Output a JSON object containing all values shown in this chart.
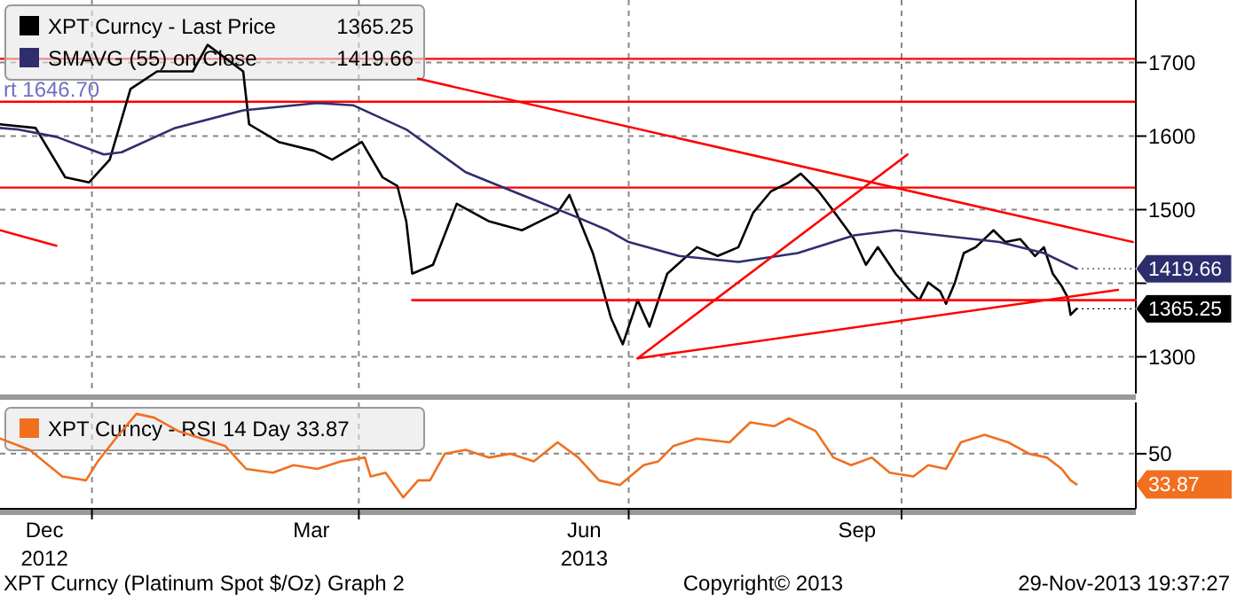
{
  "chart_data": [
    {
      "type": "line",
      "xlim": [
        "2012-12-01",
        "2013-12-19"
      ],
      "ylim": [
        1250,
        1785
      ],
      "yticks": [
        1300,
        {
          "value": 1400,
          "label": null
        },
        1500,
        1600,
        1700
      ],
      "xticks": [
        {
          "value": "2013-01-01",
          "label": null
        },
        {
          "value": "2013-04-01",
          "label": null
        },
        {
          "value": "2013-07-01",
          "label": null
        },
        {
          "value": "2013-10-01",
          "label": null
        }
      ],
      "tick_labels": "y",
      "grid": true,
      "legend": "top left",
      "marker": "none",
      "line_style": "solid",
      "series": [
        {
          "name": "XPT Curncy - Last Price",
          "color": "#000000",
          "x": [
            "2012-12-01",
            "2012-12-13",
            "2012-12-23",
            "2012-12-31",
            "2013-01-07",
            "2013-01-14",
            "2013-01-23",
            "2013-02-04",
            "2013-02-09",
            "2013-02-21",
            "2013-02-23",
            "2013-03-05",
            "2013-03-17",
            "2013-03-23",
            "2013-04-02",
            "2013-04-09",
            "2013-04-14",
            "2013-04-17",
            "2013-04-19",
            "2013-04-26",
            "2013-05-04",
            "2013-05-15",
            "2013-05-26",
            "2013-06-07",
            "2013-06-11",
            "2013-06-19",
            "2013-06-25",
            "2013-06-29",
            "2013-07-04",
            "2013-07-08",
            "2013-07-14",
            "2013-07-24",
            "2013-07-31",
            "2013-08-07",
            "2013-08-12",
            "2013-08-18",
            "2013-08-24",
            "2013-08-28",
            "2013-09-03",
            "2013-09-07",
            "2013-09-15",
            "2013-09-19",
            "2013-09-23",
            "2013-09-29",
            "2013-10-04",
            "2013-10-07",
            "2013-10-10",
            "2013-10-14",
            "2013-10-16",
            "2013-10-19",
            "2013-10-22",
            "2013-10-26",
            "2013-11-01",
            "2013-11-05",
            "2013-11-10",
            "2013-11-15",
            "2013-11-18",
            "2013-11-21",
            "2013-11-24",
            "2013-11-26",
            "2013-11-27",
            "2013-11-29"
          ],
          "values": [
            1616,
            1611,
            1544,
            1537,
            1568,
            1664,
            1688,
            1688,
            1724,
            1688,
            1616,
            1592,
            1580,
            1568,
            1592,
            1544,
            1532,
            1484,
            1413,
            1425,
            1508,
            1484,
            1472,
            1496,
            1520,
            1440,
            1353,
            1317,
            1377,
            1341,
            1413,
            1449,
            1437,
            1449,
            1496,
            1525,
            1537,
            1549,
            1525,
            1504,
            1460,
            1425,
            1449,
            1413,
            1389,
            1377,
            1401,
            1389,
            1372,
            1401,
            1441,
            1449,
            1472,
            1456,
            1460,
            1437,
            1449,
            1413,
            1396,
            1381,
            1357,
            1365.25
          ],
          "value_labels": [
            null,
            null,
            null,
            null,
            null,
            null,
            null,
            null,
            null,
            null,
            null,
            null,
            null,
            null,
            null,
            null,
            null,
            null,
            null,
            null,
            null,
            null,
            null,
            null,
            null,
            null,
            null,
            null,
            null,
            null,
            null,
            null,
            null,
            null,
            null,
            null,
            null,
            null,
            null,
            null,
            null,
            null,
            null,
            null,
            null,
            null,
            null,
            null,
            null,
            null,
            null,
            null,
            null,
            null,
            null,
            null,
            null,
            null,
            null,
            null,
            null,
            "1365.25"
          ]
        },
        {
          "name": "SMAVG (55) on Close",
          "color": "#2e2e6e",
          "x": [
            "2012-12-01",
            "2012-12-07",
            "2012-12-20",
            "2013-01-05",
            "2013-01-11",
            "2013-01-29",
            "2013-02-21",
            "2013-03-18",
            "2013-03-30",
            "2013-04-17",
            "2013-05-07",
            "2013-05-26",
            "2013-06-14",
            "2013-06-24",
            "2013-07-01",
            "2013-07-18",
            "2013-08-07",
            "2013-08-27",
            "2013-09-15",
            "2013-09-29",
            "2013-10-14",
            "2013-11-03",
            "2013-11-18",
            "2013-11-29"
          ],
          "values": [
            1611,
            1609,
            1599,
            1575,
            1578,
            1611,
            1635,
            1645,
            1642,
            1609,
            1551,
            1520,
            1489,
            1472,
            1456,
            1437,
            1429,
            1441,
            1465,
            1472,
            1465,
            1456,
            1441,
            1419.66
          ],
          "value_labels": [
            null,
            null,
            null,
            null,
            null,
            null,
            null,
            null,
            null,
            null,
            null,
            null,
            null,
            null,
            null,
            null,
            null,
            null,
            null,
            null,
            null,
            null,
            null,
            "1419.66"
          ]
        },
        {
          "type": "line",
          "color": "#ff0000",
          "x": [
            "2013-04-21",
            "2013-12-18"
          ],
          "values": [
            1678,
            1456
          ]
        },
        {
          "type": "line",
          "color": "#ff0000",
          "x": [
            "2012-12-01",
            "2012-12-20"
          ],
          "values": [
            1472,
            1451
          ]
        },
        {
          "type": "line",
          "color": "#ff0000",
          "x": [
            "2013-07-04",
            "2013-10-03"
          ],
          "values": [
            1298,
            1575
          ]
        },
        {
          "type": "line",
          "color": "#ff0000",
          "x": [
            "2013-07-04",
            "2013-12-13"
          ],
          "values": [
            1298,
            1391
          ]
        },
        {
          "type": "line",
          "color": "#ff0000",
          "x": [
            "2013-04-19",
            "2013-12-19"
          ],
          "values": [
            1377,
            1377
          ]
        }
      ],
      "ref_lines": [
        {
          "axis": "y",
          "value": 1705,
          "color": "#ff0000"
        },
        {
          "axis": "y",
          "value": 1646.7,
          "color": "#ff0000"
        },
        {
          "axis": "y",
          "value": 1530,
          "color": "#ff0000"
        }
      ],
      "annotations": [
        {
          "text": "rt 1646.70",
          "x": "2012-12-01",
          "y": 1646.7
        }
      ]
    },
    {
      "type": "line",
      "xlim": [
        "2012-12-01",
        "2013-12-19"
      ],
      "ylim": [
        21,
        77
      ],
      "yticks": [
        50,
        {
          "value": 33.87,
          "label": "33.87"
        }
      ],
      "xticks": [
        {
          "value": "2012-12-16",
          "label": "Dec\n2012"
        },
        {
          "value": "2013-01-01",
          "label": null
        },
        {
          "value": "2013-03-16",
          "label": "Mar"
        },
        {
          "value": "2013-04-01",
          "label": null
        },
        {
          "value": "2013-06-16",
          "label": "Jun\n2013"
        },
        {
          "value": "2013-07-01",
          "label": null
        },
        {
          "value": "2013-09-16",
          "label": "Sep"
        },
        {
          "value": "2013-10-01",
          "label": null
        }
      ],
      "grid": true,
      "legend": "top left",
      "marker": "none",
      "line_style": "solid",
      "series": [
        {
          "name": "XPT Curncy - RSI 14 Day 33.87",
          "color": "#f07020",
          "x": [
            "2012-12-01",
            "2012-12-11",
            "2012-12-22",
            "2012-12-30",
            "2013-01-03",
            "2013-01-09",
            "2013-01-16",
            "2013-01-22",
            "2013-01-30",
            "2013-02-07",
            "2013-02-15",
            "2013-02-22",
            "2013-03-03",
            "2013-03-10",
            "2013-03-18",
            "2013-03-26",
            "2013-04-03",
            "2013-04-05",
            "2013-04-10",
            "2013-04-16",
            "2013-04-21",
            "2013-04-25",
            "2013-04-30",
            "2013-05-07",
            "2013-05-15",
            "2013-05-22",
            "2013-05-30",
            "2013-06-07",
            "2013-06-14",
            "2013-06-21",
            "2013-06-28",
            "2013-07-06",
            "2013-07-11",
            "2013-07-16",
            "2013-07-24",
            "2013-08-04",
            "2013-08-11",
            "2013-08-19",
            "2013-08-24",
            "2013-09-02",
            "2013-09-08",
            "2013-09-14",
            "2013-09-21",
            "2013-09-27",
            "2013-10-05",
            "2013-10-10",
            "2013-10-16",
            "2013-10-21",
            "2013-10-29",
            "2013-11-06",
            "2013-11-13",
            "2013-11-19",
            "2013-11-24",
            "2013-11-27",
            "2013-11-29"
          ],
          "values": [
            58,
            52,
            38,
            36,
            46,
            58,
            71,
            69,
            62,
            58,
            54,
            42,
            40,
            44,
            42,
            46,
            48,
            38,
            40,
            27,
            36,
            36,
            50,
            52,
            48,
            50,
            46,
            56,
            48,
            36,
            33.5,
            44,
            46,
            54,
            58,
            56,
            66.5,
            64.5,
            68.6,
            62,
            48,
            44,
            48,
            40,
            38,
            44,
            42,
            56,
            60,
            56,
            50,
            48,
            42,
            36,
            33.87
          ]
        }
      ],
      "annotations": [
        "XPT Curncy (Platinum Spot  $/Oz) Graph 2",
        "Copyright© 2013",
        "29-Nov-2013 19:37:27"
      ]
    }
  ]
}
